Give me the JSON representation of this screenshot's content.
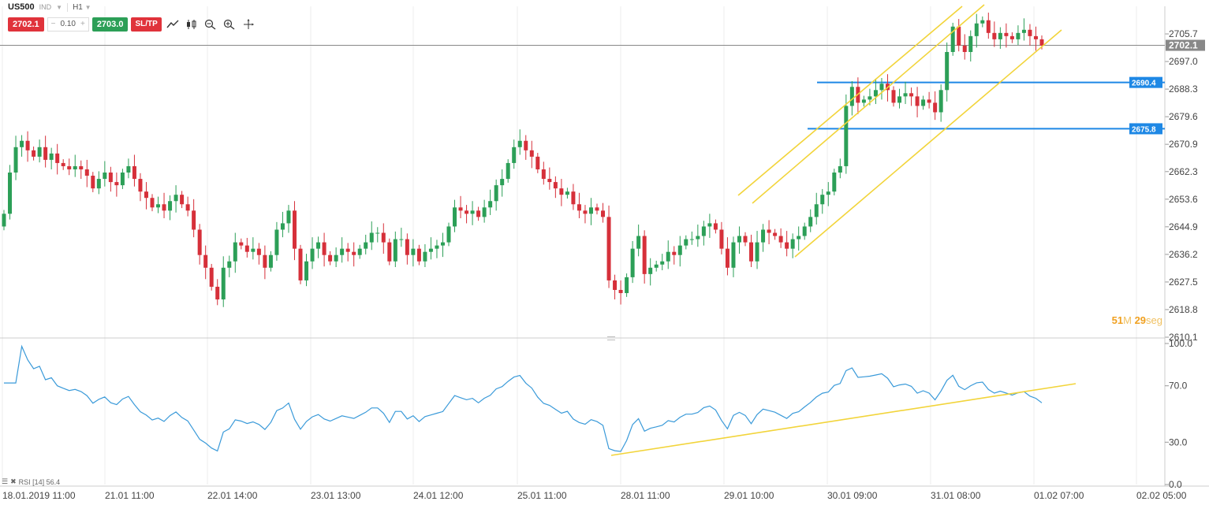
{
  "symbol": {
    "name": "US500",
    "type": "IND",
    "timeframe": "H1"
  },
  "trade": {
    "sell_price": "2702.1",
    "quantity": "0.10",
    "minus": "−",
    "plus": "+",
    "buy_price": "2703.0",
    "sltp_label": "SL/TP"
  },
  "toolbar_icons": [
    "line-draw-icon",
    "candle-type-icon",
    "zoom-out-icon",
    "zoom-in-icon",
    "crosshair-icon"
  ],
  "price_axis": {
    "ticks": [
      "2705.7",
      "2697.0",
      "2688.3",
      "2679.6",
      "2670.9",
      "2662.3",
      "2653.6",
      "2644.9",
      "2636.2",
      "2627.5",
      "2618.8",
      "2610.1"
    ],
    "current_price": "2702.1",
    "levels": [
      "2690.4",
      "2675.8"
    ]
  },
  "rsi_axis": {
    "ticks": [
      "100.0",
      "70.0",
      "30.0",
      "0.0"
    ]
  },
  "rsi_label": {
    "text": "RSI [14] 56.4"
  },
  "time_axis": {
    "labels": [
      "18.01.2019 11:00",
      "21.01 11:00",
      "22.01 14:00",
      "23.01 13:00",
      "24.01 12:00",
      "25.01 11:00",
      "28.01 11:00",
      "29.01 10:00",
      "30.01 09:00",
      "31.01 08:00",
      "01.02 07:00",
      "02.02 05:00"
    ]
  },
  "countdown": {
    "minutes": "51",
    "min_unit": "M",
    "seconds": "29",
    "sec_unit": "seg"
  },
  "colors": {
    "bull": "#2c9f57",
    "bear": "#d6303a",
    "rsi_line": "#3a9ad9",
    "trendline": "#f2d43a",
    "level_line": "#1e88e5",
    "price_line": "#888888"
  },
  "chart_data": {
    "type": "candlestick",
    "ylim": [
      2610.1,
      2714.4
    ],
    "close": [
      2649,
      2662,
      2670,
      2672,
      2669,
      2667,
      2670,
      2666,
      2668,
      2665,
      2664,
      2663,
      2664,
      2663,
      2661,
      2657,
      2660,
      2662,
      2659,
      2658,
      2662,
      2664,
      2660,
      2656,
      2654,
      2651,
      2652,
      2650,
      2653,
      2655,
      2652,
      2650,
      2644,
      2636,
      2632,
      2626,
      2622,
      2632,
      2634,
      2640,
      2639,
      2637,
      2638,
      2636,
      2632,
      2636,
      2644,
      2646,
      2650,
      2638,
      2628,
      2634,
      2638,
      2640,
      2636,
      2634,
      2636,
      2638,
      2637,
      2636,
      2638,
      2640,
      2643,
      2643,
      2640,
      2634,
      2641,
      2641,
      2636,
      2638,
      2634,
      2637,
      2638,
      2639,
      2640,
      2645,
      2651,
      2650,
      2649,
      2650,
      2648,
      2651,
      2653,
      2658,
      2660,
      2665,
      2670,
      2672,
      2669,
      2667,
      2663,
      2660,
      2659,
      2657,
      2655,
      2656,
      2652,
      2650,
      2649,
      2651,
      2650,
      2648,
      2628,
      2625,
      2624,
      2629,
      2638,
      2642,
      2630,
      2632,
      2633,
      2634,
      2637,
      2636,
      2639,
      2641,
      2641,
      2642,
      2645,
      2646,
      2644,
      2638,
      2632,
      2640,
      2642,
      2640,
      2634,
      2640,
      2644,
      2643,
      2642,
      2640,
      2638,
      2641,
      2642,
      2645,
      2648,
      2652,
      2655,
      2656,
      2662,
      2664,
      2683,
      2689,
      2684,
      2685,
      2686,
      2688,
      2690,
      2688,
      2684,
      2686,
      2687,
      2686,
      2683,
      2685,
      2684,
      2681,
      2688,
      2700,
      2708,
      2702,
      2700,
      2705,
      2709,
      2710,
      2706,
      2704,
      2706,
      2705,
      2704,
      2706,
      2707,
      2705,
      2704,
      2702
    ]
  }
}
